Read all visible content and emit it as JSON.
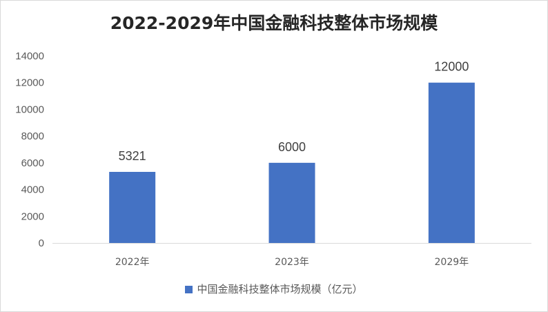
{
  "chart_data": {
    "type": "bar",
    "title": "2022-2029年中国金融科技整体市场规模",
    "categories": [
      "2022年",
      "2023年",
      "2029年"
    ],
    "series": [
      {
        "name": "中国金融科技整体市场规模（亿元）",
        "values": [
          5321,
          6000,
          12000
        ],
        "color": "#4472c4"
      }
    ],
    "data_labels": [
      "5321",
      "6000",
      "12000"
    ],
    "yticks": [
      "0",
      "2000",
      "4000",
      "6000",
      "8000",
      "10000",
      "12000",
      "14000"
    ],
    "ylim": [
      0,
      14000
    ],
    "grid": false,
    "legend_position": "bottom",
    "xlabel": "",
    "ylabel": ""
  }
}
